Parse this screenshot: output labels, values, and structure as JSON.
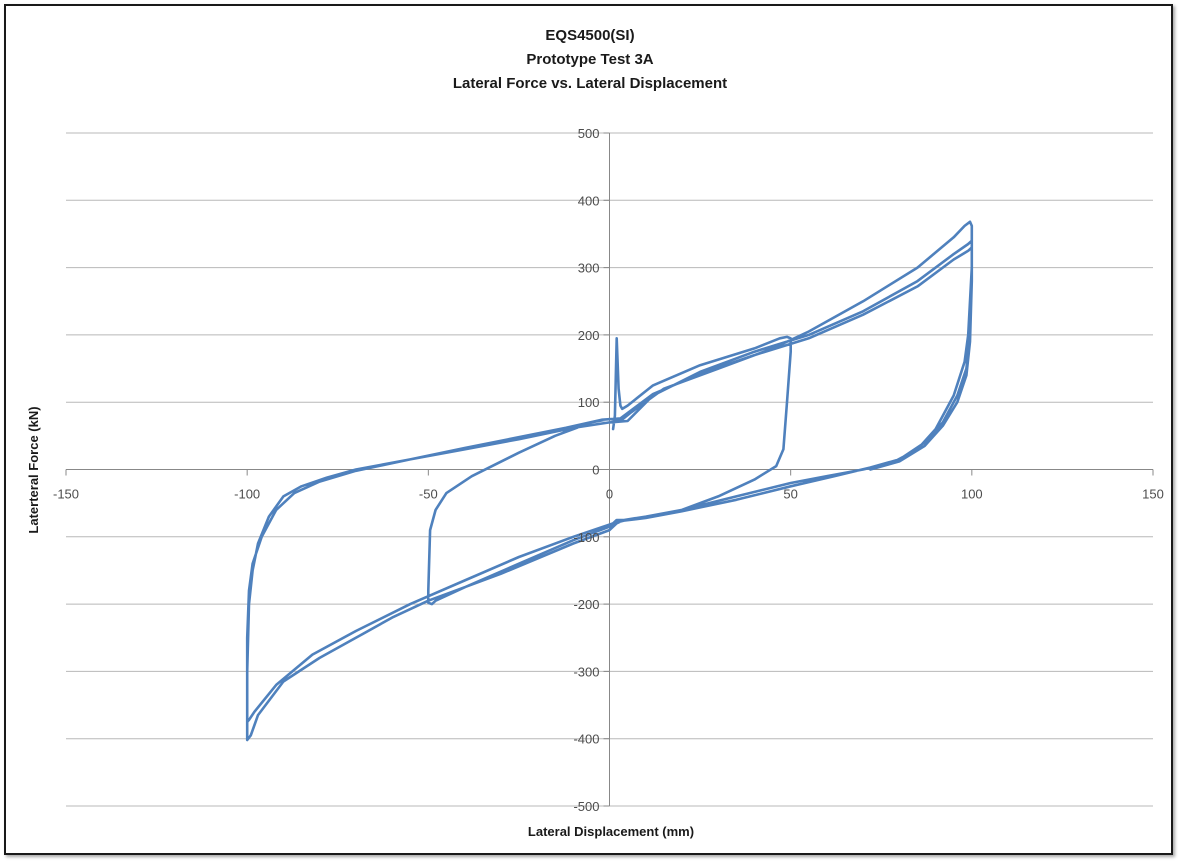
{
  "chart_data": {
    "type": "line",
    "title": "EQS4500(SI)",
    "subtitle": "Prototype Test 3A",
    "subtitle2": "Lateral Force vs. Lateral Displacement",
    "xlabel": "Lateral Displacement (mm)",
    "ylabel": "Laterteral Force (kN)",
    "xlim": [
      -150,
      150
    ],
    "ylim": [
      -500,
      500
    ],
    "x_ticks": [
      -150,
      -100,
      -50,
      0,
      50,
      100,
      150
    ],
    "y_ticks": [
      -500,
      -400,
      -300,
      -200,
      -100,
      0,
      100,
      200,
      300,
      400,
      500
    ],
    "grid": "horizontal",
    "legend": "none",
    "line_color": "#4F81BD",
    "series": [
      {
        "points": [
          [
            1,
            60
          ],
          [
            1.5,
            80
          ],
          [
            2,
            195
          ],
          [
            2.5,
            120
          ],
          [
            3,
            95
          ],
          [
            3.5,
            90
          ],
          [
            5,
            95
          ],
          [
            12,
            125
          ],
          [
            25,
            155
          ],
          [
            40,
            180
          ],
          [
            47,
            195
          ],
          [
            49,
            197
          ],
          [
            50,
            195
          ],
          [
            50,
            175
          ],
          [
            49,
            100
          ],
          [
            48,
            30
          ],
          [
            46,
            5
          ],
          [
            40,
            -15
          ],
          [
            30,
            -40
          ],
          [
            20,
            -60
          ],
          [
            12,
            -70
          ],
          [
            5,
            -75
          ],
          [
            2,
            -75
          ],
          [
            0,
            -85
          ],
          [
            -10,
            -105
          ],
          [
            -25,
            -140
          ],
          [
            -40,
            -175
          ],
          [
            -48,
            -195
          ],
          [
            -49,
            -200
          ],
          [
            -50,
            -198
          ],
          [
            -50,
            -180
          ],
          [
            -49.5,
            -90
          ],
          [
            -48,
            -60
          ],
          [
            -45,
            -35
          ],
          [
            -38,
            -10
          ],
          [
            -25,
            25
          ],
          [
            -15,
            50
          ],
          [
            -5,
            70
          ],
          [
            0,
            75
          ],
          [
            3,
            72
          ],
          [
            6,
            85
          ],
          [
            15,
            120
          ],
          [
            30,
            150
          ],
          [
            45,
            180
          ],
          [
            55,
            205
          ],
          [
            70,
            250
          ],
          [
            85,
            300
          ],
          [
            95,
            345
          ],
          [
            98,
            362
          ],
          [
            99.5,
            368
          ],
          [
            100,
            362
          ],
          [
            100,
            300
          ],
          [
            99,
            200
          ],
          [
            98,
            160
          ],
          [
            95,
            110
          ],
          [
            90,
            60
          ],
          [
            85,
            30
          ],
          [
            78,
            10
          ],
          [
            70,
            0
          ],
          [
            60,
            -10
          ],
          [
            50,
            -20
          ],
          [
            35,
            -40
          ],
          [
            20,
            -60
          ],
          [
            10,
            -70
          ],
          [
            4,
            -75
          ],
          [
            2,
            -80
          ],
          [
            0,
            -90
          ],
          [
            -10,
            -110
          ],
          [
            -30,
            -155
          ],
          [
            -50,
            -195
          ],
          [
            -60,
            -220
          ],
          [
            -70,
            -250
          ],
          [
            -80,
            -280
          ],
          [
            -90,
            -315
          ],
          [
            -97,
            -365
          ],
          [
            -99,
            -395
          ],
          [
            -100,
            -402
          ],
          [
            -100,
            -380
          ],
          [
            -100,
            -300
          ],
          [
            -99.5,
            -200
          ],
          [
            -98.5,
            -150
          ],
          [
            -97,
            -110
          ],
          [
            -94,
            -70
          ],
          [
            -90,
            -40
          ],
          [
            -85,
            -25
          ],
          [
            -78,
            -12
          ],
          [
            -70,
            0
          ],
          [
            -55,
            15
          ],
          [
            -40,
            30
          ],
          [
            -25,
            45
          ],
          [
            -10,
            62
          ],
          [
            0,
            70
          ],
          [
            5,
            72
          ],
          [
            12,
            110
          ],
          [
            25,
            145
          ],
          [
            40,
            175
          ],
          [
            55,
            200
          ],
          [
            70,
            235
          ],
          [
            85,
            280
          ],
          [
            95,
            320
          ],
          [
            99,
            335
          ],
          [
            100,
            340
          ],
          [
            100,
            290
          ],
          [
            99.5,
            200
          ],
          [
            98.5,
            150
          ],
          [
            96,
            110
          ],
          [
            92,
            70
          ],
          [
            87,
            40
          ],
          [
            80,
            15
          ],
          [
            72,
            3
          ],
          [
            62,
            -10
          ],
          [
            50,
            -25
          ],
          [
            35,
            -45
          ],
          [
            20,
            -62
          ],
          [
            10,
            -72
          ],
          [
            4,
            -76
          ],
          [
            1,
            -80
          ],
          [
            -10,
            -100
          ],
          [
            -25,
            -130
          ],
          [
            -40,
            -165
          ],
          [
            -55,
            -200
          ],
          [
            -70,
            -240
          ],
          [
            -82,
            -275
          ],
          [
            -92,
            -320
          ],
          [
            -98,
            -360
          ],
          [
            -99.5,
            -372
          ],
          [
            -100,
            -375
          ],
          [
            -100,
            -330
          ],
          [
            -100,
            -250
          ],
          [
            -99.5,
            -180
          ],
          [
            -98.5,
            -140
          ],
          [
            -96,
            -100
          ],
          [
            -92,
            -60
          ],
          [
            -87,
            -35
          ],
          [
            -80,
            -18
          ],
          [
            -70,
            -2
          ],
          [
            -55,
            15
          ],
          [
            -40,
            32
          ],
          [
            -25,
            48
          ],
          [
            -12,
            62
          ],
          [
            -2,
            74
          ],
          [
            3,
            76
          ],
          [
            12,
            112
          ],
          [
            25,
            142
          ],
          [
            40,
            170
          ],
          [
            55,
            195
          ],
          [
            70,
            230
          ],
          [
            85,
            272
          ],
          [
            95,
            312
          ],
          [
            99,
            325
          ],
          [
            100,
            330
          ],
          [
            100,
            280
          ],
          [
            99.5,
            190
          ],
          [
            98.5,
            140
          ],
          [
            96,
            100
          ],
          [
            92,
            65
          ],
          [
            87,
            35
          ],
          [
            80,
            12
          ],
          [
            72,
            0
          ]
        ]
      }
    ]
  }
}
